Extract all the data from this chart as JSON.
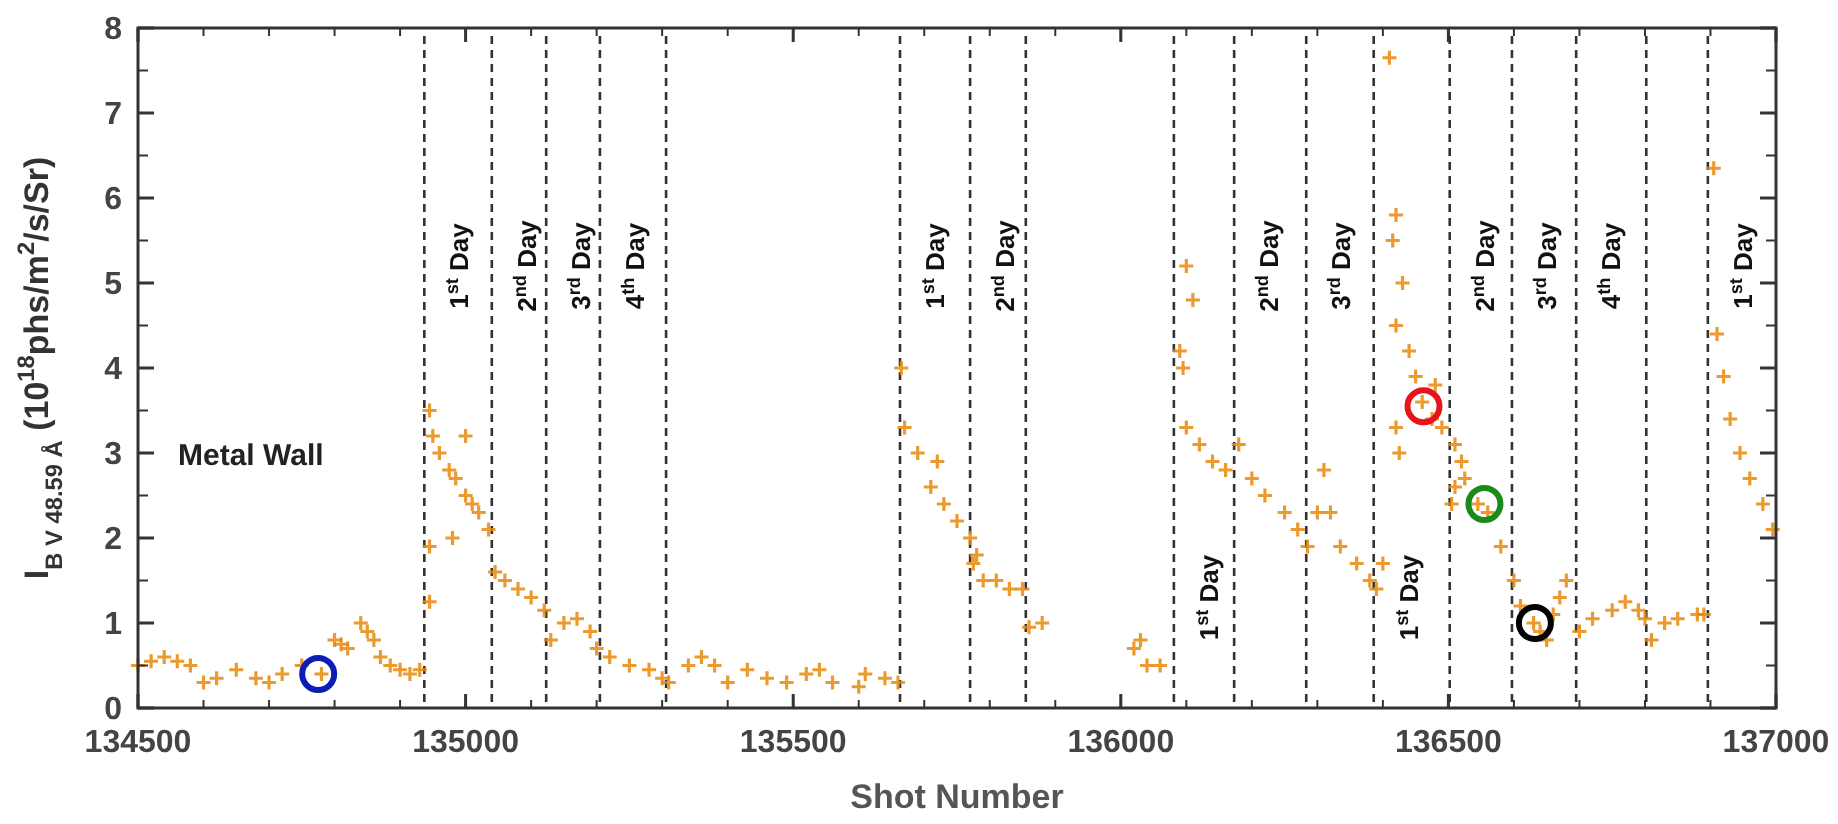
{
  "chart_data": {
    "type": "scatter",
    "xlabel": "Shot Number",
    "ylabel": "I$_{B V 48.59 Å}$ (10$^{18}$phs/m$^{2}$/s/Sr)",
    "xlim": [
      134500,
      137000
    ],
    "xticks": [
      134500,
      135000,
      135500,
      136000,
      136500,
      137000
    ],
    "ylim": [
      0,
      8
    ],
    "yticks": [
      0,
      1,
      2,
      3,
      4,
      5,
      6,
      7,
      8
    ],
    "annotations": [
      "Metal Wall"
    ],
    "series": [
      {
        "type": "scatter",
        "marker": "cross",
        "color": "#e8890c",
        "x": [
          134500,
          134520,
          134540,
          134560,
          134580,
          134600,
          134620,
          134650,
          134680,
          134700,
          134720,
          134750,
          134780,
          134800,
          134810,
          134820,
          134840,
          134850,
          134860,
          134870,
          134885,
          134900,
          134915,
          134930,
          134945,
          134945,
          134945,
          134950,
          134960,
          134975,
          134980,
          134985,
          135000,
          135000,
          135010,
          135020,
          135035,
          135045,
          135060,
          135080,
          135100,
          135120,
          135130,
          135150,
          135170,
          135190,
          135200,
          135220,
          135250,
          135280,
          135300,
          135310,
          135340,
          135360,
          135380,
          135400,
          135430,
          135460,
          135490,
          135520,
          135540,
          135560,
          135600,
          135610,
          135640,
          135660,
          135665,
          135670,
          135690,
          135710,
          135720,
          135730,
          135750,
          135770,
          135775,
          135780,
          135790,
          135810,
          135830,
          135850,
          135860,
          135880,
          136020,
          136030,
          136040,
          136060,
          136090,
          136095,
          136100,
          136100,
          136110,
          136120,
          136140,
          136160,
          136180,
          136200,
          136220,
          136250,
          136270,
          136285,
          136300,
          136310,
          136320,
          136335,
          136360,
          136380,
          136390,
          136400,
          136410,
          136415,
          136420,
          136420,
          136425,
          136420,
          136430,
          136440,
          136450,
          136460,
          136475,
          136480,
          136490,
          136505,
          136510,
          136510,
          136520,
          136525,
          136545,
          136560,
          136580,
          136600,
          136610,
          136630,
          136640,
          136650,
          136660,
          136670,
          136680,
          136700,
          136720,
          136750,
          136770,
          136790,
          136800,
          136810,
          136830,
          136850,
          136880,
          136890,
          136905,
          136910,
          136920,
          136930,
          136945,
          136960,
          136980,
          136995
        ],
        "values": [
          0.5,
          0.55,
          0.6,
          0.55,
          0.5,
          0.3,
          0.35,
          0.45,
          0.35,
          0.3,
          0.4,
          0.5,
          0.4,
          0.8,
          0.75,
          0.7,
          1.0,
          0.9,
          0.8,
          0.6,
          0.5,
          0.45,
          0.4,
          0.45,
          3.5,
          1.9,
          1.25,
          3.2,
          3.0,
          2.8,
          2.0,
          2.7,
          2.5,
          3.2,
          2.4,
          2.3,
          2.1,
          1.6,
          1.5,
          1.4,
          1.3,
          1.15,
          0.8,
          1.0,
          1.05,
          0.9,
          0.7,
          0.6,
          0.5,
          0.45,
          0.35,
          0.3,
          0.5,
          0.6,
          0.5,
          0.3,
          0.45,
          0.35,
          0.3,
          0.4,
          0.45,
          0.3,
          0.25,
          0.4,
          0.35,
          0.3,
          4.0,
          3.3,
          3.0,
          2.6,
          2.9,
          2.4,
          2.2,
          2.0,
          1.7,
          1.8,
          1.5,
          1.5,
          1.4,
          1.4,
          0.95,
          1.0,
          0.7,
          0.8,
          0.5,
          0.5,
          4.2,
          4.0,
          5.2,
          3.3,
          4.8,
          3.1,
          2.9,
          2.8,
          3.1,
          2.7,
          2.5,
          2.3,
          2.1,
          1.9,
          2.3,
          2.8,
          2.3,
          1.9,
          1.7,
          1.5,
          1.4,
          1.7,
          7.65,
          5.5,
          5.8,
          4.5,
          3.0,
          3.3,
          5.0,
          4.2,
          3.9,
          3.6,
          3.4,
          3.8,
          3.3,
          2.4,
          3.1,
          2.6,
          2.9,
          2.7,
          2.4,
          2.3,
          1.9,
          1.5,
          1.2,
          1.0,
          0.9,
          0.8,
          1.1,
          1.3,
          1.5,
          0.9,
          1.05,
          1.15,
          1.25,
          1.15,
          1.05,
          0.8,
          1.0,
          1.05,
          1.1,
          1.1,
          6.35,
          4.4,
          3.9,
          3.4,
          3.0,
          2.7,
          2.4,
          2.1
        ]
      },
      {
        "type": "scatter",
        "marker": "circle",
        "color": "#0b1fb5",
        "x": [
          134775
        ],
        "values": [
          0.4
        ]
      },
      {
        "type": "scatter",
        "marker": "circle",
        "color": "#e8141c",
        "x": [
          136462
        ],
        "values": [
          3.55
        ]
      },
      {
        "type": "scatter",
        "marker": "circle",
        "color": "#1a8a1a",
        "x": [
          136555
        ],
        "values": [
          2.4
        ]
      },
      {
        "type": "scatter",
        "marker": "circle",
        "color": "#000000",
        "x": [
          136632
        ],
        "values": [
          1.0
        ]
      }
    ],
    "ref_lines": [
      {
        "axis": "x",
        "value": 134937,
        "label": "1$^{st}$ Day",
        "color": "#333333",
        "line_style": "dashed"
      },
      {
        "axis": "x",
        "value": 135040,
        "label": "2$^{nd}$ Day",
        "color": "#333333",
        "line_style": "dashed"
      },
      {
        "axis": "x",
        "value": 135123,
        "label": "3$^{rd}$ Day",
        "color": "#333333",
        "line_style": "dashed"
      },
      {
        "axis": "x",
        "value": 135205,
        "label": "4$^{th}$ Day",
        "color": "#333333",
        "line_style": "dashed"
      },
      {
        "axis": "x",
        "value": 135306,
        "color": "#333333",
        "line_style": "dashed"
      },
      {
        "axis": "x",
        "value": 135663,
        "label": "1$^{st}$ Day",
        "color": "#333333",
        "line_style": "dashed"
      },
      {
        "axis": "x",
        "value": 135770,
        "label": "2$^{nd}$ Day",
        "color": "#333333",
        "line_style": "dashed"
      },
      {
        "axis": "x",
        "value": 135855,
        "color": "#333333",
        "line_style": "dashed"
      },
      {
        "axis": "x",
        "value": 136081,
        "label": "1$^{st}$ Day",
        "color": "#333333",
        "line_style": "dashed"
      },
      {
        "axis": "x",
        "value": 136173,
        "label": "2$^{nd}$ Day",
        "color": "#333333",
        "line_style": "dashed"
      },
      {
        "axis": "x",
        "value": 136283,
        "label": "3$^{rd}$ Day",
        "color": "#333333",
        "line_style": "dashed"
      },
      {
        "axis": "x",
        "value": 136386,
        "label": "1$^{st}$ Day",
        "color": "#333333",
        "line_style": "dashed"
      },
      {
        "axis": "x",
        "value": 136502,
        "label": "2$^{nd}$ Day",
        "color": "#333333",
        "line_style": "dashed"
      },
      {
        "axis": "x",
        "value": 136597,
        "label": "3$^{rd}$ Day",
        "color": "#333333",
        "line_style": "dashed"
      },
      {
        "axis": "x",
        "value": 136695,
        "label": "4$^{th}$ Day",
        "color": "#333333",
        "line_style": "dashed"
      },
      {
        "axis": "x",
        "value": 136802,
        "color": "#333333",
        "line_style": "dashed"
      },
      {
        "axis": "x",
        "value": 136896,
        "label": "1$^{st}$ Day",
        "color": "#333333",
        "line_style": "dashed"
      }
    ]
  }
}
